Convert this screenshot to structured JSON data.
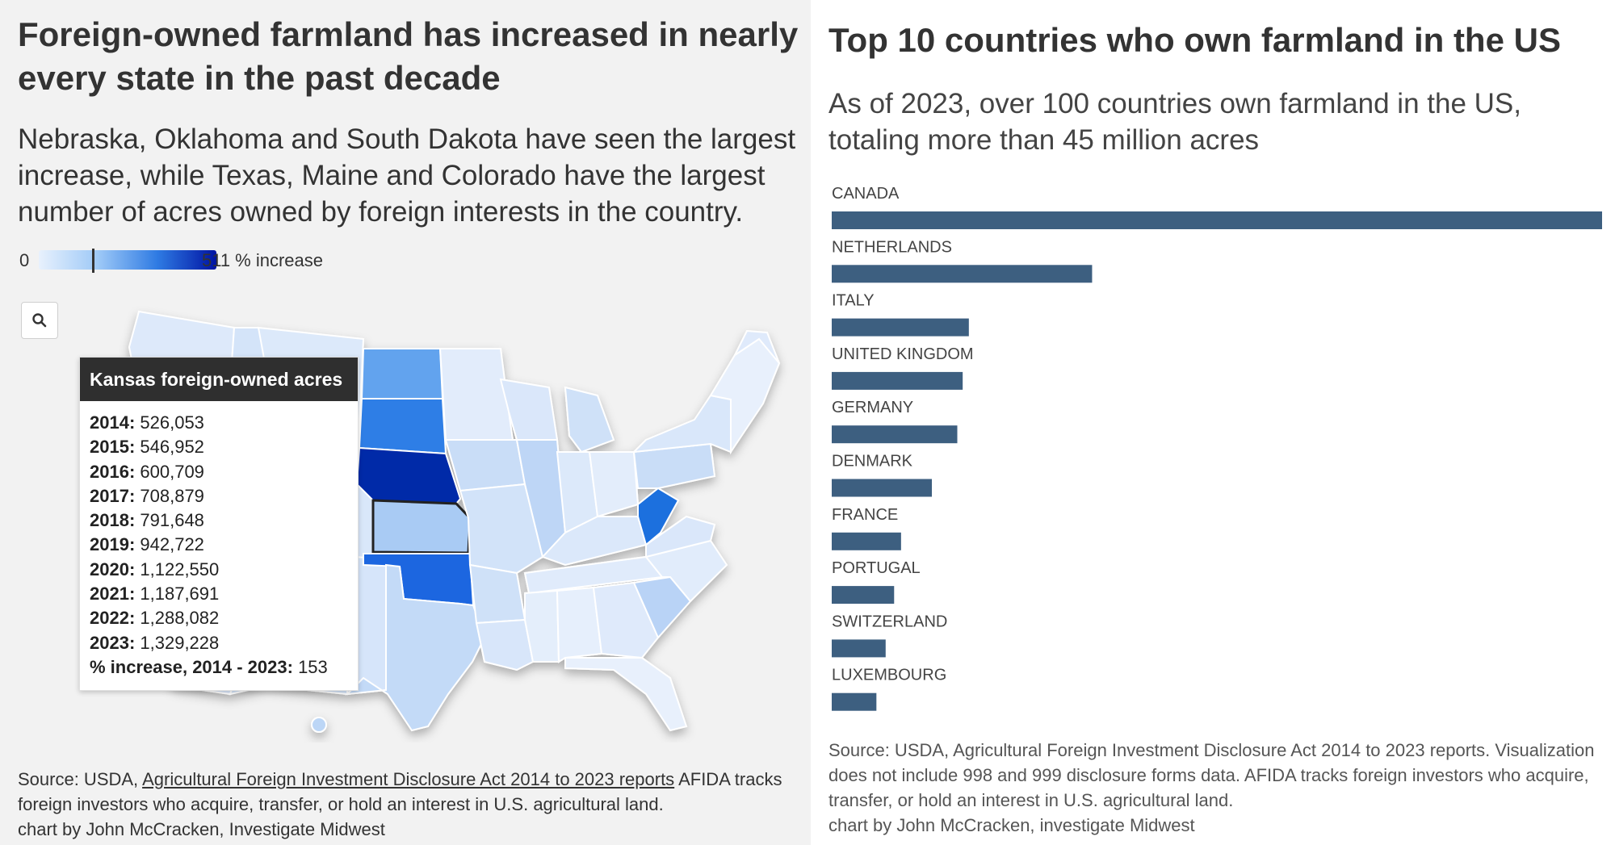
{
  "map": {
    "title": "Foreign-owned farmland has increased in nearly every state in the past decade",
    "subtitle": "Nebraska, Oklahoma and South Dakota have seen the largest increase, while Texas, Maine and Colorado have the largest number of acres owned by foreign interests in the country.",
    "legend": {
      "min": "0",
      "max": "511 % increase",
      "marker_value": 153,
      "max_value": 511
    },
    "zoom_icon": "search-icon",
    "tooltip": {
      "title": "Kansas foreign-owned acres",
      "rows": [
        {
          "label": "2014:",
          "value": "526,053"
        },
        {
          "label": "2015:",
          "value": "546,952"
        },
        {
          "label": "2016:",
          "value": "600,709"
        },
        {
          "label": "2017:",
          "value": "708,879"
        },
        {
          "label": "2018:",
          "value": "791,648"
        },
        {
          "label": "2019:",
          "value": "942,722"
        },
        {
          "label": "2020:",
          "value": "1,122,550"
        },
        {
          "label": "2021:",
          "value": "1,187,691"
        },
        {
          "label": "2022:",
          "value": "1,288,082"
        },
        {
          "label": "2023:",
          "value": "1,329,228"
        },
        {
          "label": "% increase, 2014 - 2023:",
          "value": "153"
        }
      ]
    },
    "source_prefix": "Source: USDA, ",
    "source_link": "Agricultural Foreign Investment Disclosure Act 2014 to 2023 reports",
    "source_rest": " AFIDA tracks foreign investors who acquire, transfer, or hold an interest in U.S. agricultural land.",
    "credit": "chart by John McCracken, Investigate Midwest",
    "colors": {
      "very_light": "#e3edfb",
      "light": "#c9ddf7",
      "mid_light": "#a9cbf4",
      "mid": "#62a3ee",
      "strong": "#2d7ee6",
      "dark": "#0029a8",
      "selected_outline": "#222222"
    }
  },
  "bars": {
    "title": "Top 10 countries who own farmland in the US",
    "subtitle": "As of 2023, over 100 countries own farmland in the US, totaling more than 45 million acres",
    "source": "Source: USDA, Agricultural Foreign Investment Disclosure Act 2014 to 2023 reports. Visualization does not include 998 and 999 disclosure forms data. AFIDA tracks foreign investors who acquire, transfer, or hold an interest in U.S. agricultural land.",
    "credit": "chart by John McCracken, investigate Midwest",
    "bar_color": "#3d5f80"
  },
  "chart_data": {
    "type": "bar",
    "categories": [
      "CANADA",
      "NETHERLANDS",
      "ITALY",
      "UNITED KINGDOM",
      "GERMANY",
      "DENMARK",
      "FRANCE",
      "PORTUGAL",
      "SWITZERLAND",
      "LUXEMBOURG"
    ],
    "values": [
      100,
      33.8,
      17.8,
      17.0,
      16.3,
      13.0,
      9.0,
      8.1,
      7.0,
      5.8
    ],
    "orientation": "horizontal",
    "title": "Top 10 countries who own farmland in the US",
    "xlabel": "",
    "ylabel": ""
  }
}
